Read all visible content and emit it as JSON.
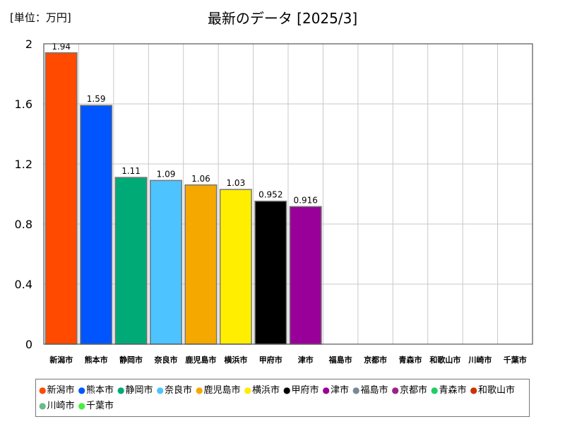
{
  "unit_label": "[単位：万円]",
  "chart_data": {
    "type": "bar",
    "title": "最新のデータ [2025/3]",
    "xlabel": "",
    "ylabel": "",
    "ylim": [
      0,
      2
    ],
    "yticks": [
      0,
      0.4,
      0.8,
      1.2,
      1.6,
      2
    ],
    "ytick_labels": [
      "0",
      "0.4",
      "0.8",
      "1.2",
      "1.6",
      "2"
    ],
    "grid": true,
    "legend_position": "bottom",
    "categories": [
      "新潟市",
      "熊本市",
      "静岡市",
      "奈良市",
      "鹿児島市",
      "横浜市",
      "甲府市",
      "津市",
      "福島市",
      "京都市",
      "青森市",
      "和歌山市",
      "川崎市",
      "千葉市"
    ],
    "values": [
      1.94,
      1.59,
      1.11,
      1.09,
      1.06,
      1.03,
      0.952,
      0.916,
      null,
      null,
      null,
      null,
      null,
      null
    ],
    "value_labels": [
      "1.94",
      "1.59",
      "1.11",
      "1.09",
      "1.06",
      "1.03",
      "0.952",
      "0.916",
      "",
      "",
      "",
      "",
      "",
      ""
    ],
    "colors": [
      "#ff4a00",
      "#0055ff",
      "#00aa77",
      "#4dc3ff",
      "#f5a800",
      "#ffee00",
      "#000000",
      "#990099",
      "#778899",
      "#992288",
      "#22cc66",
      "#cc3300",
      "#66bb88",
      "#44ee44"
    ]
  }
}
